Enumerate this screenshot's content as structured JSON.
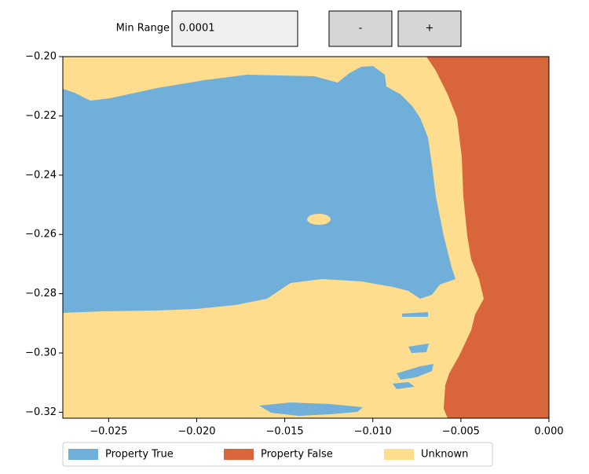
{
  "controls": {
    "label": "Min Range",
    "input_value": "0.0001",
    "buttons": [
      "-",
      "+"
    ]
  },
  "chart_data": {
    "type": "region-map",
    "series": [
      {
        "name": "Property True",
        "color": "#6fafd9"
      },
      {
        "name": "Property False",
        "color": "#d8663a"
      },
      {
        "name": "Unknown",
        "color": "#fedd8f"
      }
    ],
    "xlim": [
      -0.0276,
      0.0
    ],
    "ylim": [
      -0.322,
      -0.2
    ],
    "xticks": [
      {
        "value": -0.025,
        "label": "−0.025"
      },
      {
        "value": -0.02,
        "label": "−0.020"
      },
      {
        "value": -0.015,
        "label": "−0.015"
      },
      {
        "value": -0.01,
        "label": "−0.010"
      },
      {
        "value": -0.005,
        "label": "−0.005"
      },
      {
        "value": 0,
        "label": "0.000"
      }
    ],
    "yticks": [
      {
        "value": -0.2,
        "label": "−0.20"
      },
      {
        "value": -0.22,
        "label": "−0.22"
      },
      {
        "value": -0.24,
        "label": "−0.24"
      },
      {
        "value": -0.26,
        "label": "−0.26"
      },
      {
        "value": -0.28,
        "label": "−0.28"
      },
      {
        "value": -0.3,
        "label": "−0.30"
      },
      {
        "value": -0.32,
        "label": "−0.32"
      }
    ],
    "legend": "lower center"
  }
}
